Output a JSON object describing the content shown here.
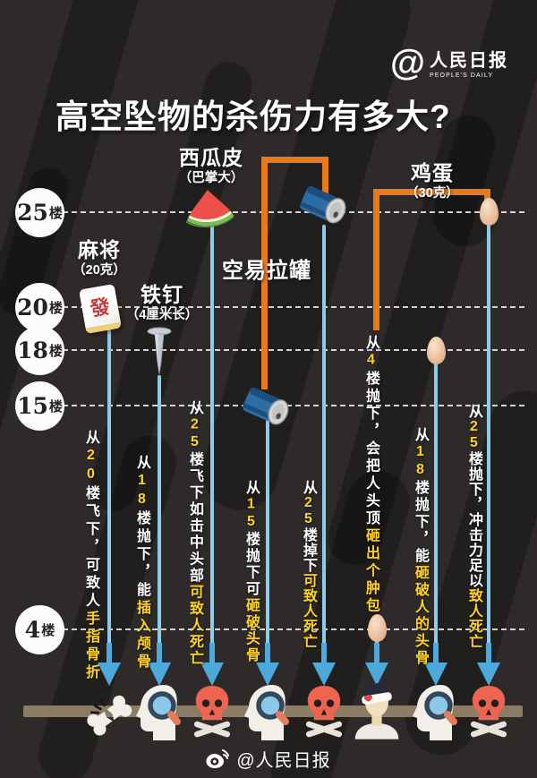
{
  "header": {
    "logo_at": "@",
    "logo_cn": "人民日报",
    "logo_en": "PEOPLE'S DAILY",
    "title": "高空坠物的杀伤力有多大?"
  },
  "floors": [
    {
      "num": "25",
      "suffix": "楼"
    },
    {
      "num": "20",
      "suffix": "楼"
    },
    {
      "num": "18",
      "suffix": "楼"
    },
    {
      "num": "15",
      "suffix": "楼"
    },
    {
      "num": "4",
      "suffix": "楼"
    }
  ],
  "objects": {
    "mahjong": {
      "name": "麻将",
      "spec": "（20克）"
    },
    "nail": {
      "name": "铁钉",
      "spec": "（4厘米长）"
    },
    "watermelon": {
      "name": "西瓜皮",
      "spec": "（巴掌大）"
    },
    "can": {
      "name": "空易拉罐"
    },
    "egg": {
      "name": "鸡蛋",
      "spec": "（30克）"
    }
  },
  "columns": [
    {
      "segments": [
        {
          "t": "从",
          "c": "w"
        },
        {
          "t": "20",
          "c": "y"
        },
        {
          "t": "楼飞下，可致人",
          "c": "w"
        },
        {
          "t": "手指骨折",
          "c": "y"
        }
      ]
    },
    {
      "segments": [
        {
          "t": "从",
          "c": "w"
        },
        {
          "t": "18",
          "c": "y"
        },
        {
          "t": "楼抛下，能",
          "c": "w"
        },
        {
          "t": "插入颅骨",
          "c": "y"
        }
      ]
    },
    {
      "segments": [
        {
          "t": "从",
          "c": "w"
        },
        {
          "t": "25",
          "c": "y"
        },
        {
          "t": "楼飞下如击中头部",
          "c": "w"
        },
        {
          "t": "可致人死亡",
          "c": "y"
        }
      ]
    },
    {
      "segments": [
        {
          "t": "从",
          "c": "w"
        },
        {
          "t": "15",
          "c": "y"
        },
        {
          "t": "楼抛下可",
          "c": "w"
        },
        {
          "t": "砸破头骨",
          "c": "y"
        }
      ]
    },
    {
      "segments": [
        {
          "t": "从",
          "c": "w"
        },
        {
          "t": "25",
          "c": "y"
        },
        {
          "t": "楼掉下",
          "c": "w"
        },
        {
          "t": "可致人死亡",
          "c": "y"
        }
      ]
    },
    {
      "segments": [
        {
          "t": "从",
          "c": "w"
        },
        {
          "t": "4",
          "c": "y"
        },
        {
          "t": "楼抛下，会把人头顶",
          "c": "w"
        },
        {
          "t": "砸出个肿包",
          "c": "y"
        }
      ]
    },
    {
      "segments": [
        {
          "t": "从",
          "c": "w"
        },
        {
          "t": "18",
          "c": "y"
        },
        {
          "t": "楼抛下，能",
          "c": "w"
        },
        {
          "t": "砸破人的头骨",
          "c": "y"
        }
      ]
    },
    {
      "segments": [
        {
          "t": "从",
          "c": "w"
        },
        {
          "t": "25",
          "c": "y"
        },
        {
          "t": "楼抛下，冲击力足以",
          "c": "w"
        },
        {
          "t": "致人死亡",
          "c": "y"
        }
      ]
    }
  ],
  "outcome_icons": [
    "broken-bone",
    "skull-crack-magnifier",
    "death-skull",
    "skull-crack-magnifier",
    "death-skull",
    "head-bump-bandage",
    "skull-crack-magnifier",
    "death-skull"
  ],
  "mahjong_tile_glyph": "發",
  "footer": {
    "credit": "@人民日报"
  },
  "colors": {
    "background": "#2e2a2a",
    "accent_orange": "#e8791d",
    "highlight_yellow": "#ffd321",
    "line_blue": "#8ecbe7",
    "arrow_blue": "#4da9dc",
    "ground_brown": "#8b7c65",
    "skull_red": "#ee6450"
  }
}
